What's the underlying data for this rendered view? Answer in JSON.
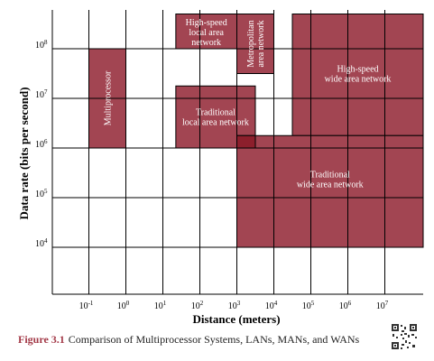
{
  "figure": {
    "x_axis_title": "Distance (meters)",
    "y_axis_title": "Data rate (bits per second)",
    "x_ticks": [
      {
        "base": "10",
        "exp": "-1"
      },
      {
        "base": "10",
        "exp": "0"
      },
      {
        "base": "10",
        "exp": "1"
      },
      {
        "base": "10",
        "exp": "2"
      },
      {
        "base": "10",
        "exp": "3"
      },
      {
        "base": "10",
        "exp": "4"
      },
      {
        "base": "10",
        "exp": "5"
      },
      {
        "base": "10",
        "exp": "6"
      },
      {
        "base": "10",
        "exp": "7"
      }
    ],
    "y_ticks": [
      {
        "base": "10",
        "exp": "8"
      },
      {
        "base": "10",
        "exp": "7"
      },
      {
        "base": "10",
        "exp": "6"
      },
      {
        "base": "10",
        "exp": "5"
      },
      {
        "base": "10",
        "exp": "4"
      }
    ],
    "regions": [
      {
        "id": "multiprocessor",
        "label_lines": [
          "Multiprocessor"
        ],
        "vertical": true,
        "x_range_log10": [
          -1,
          0
        ],
        "y_range_log10": [
          6,
          8
        ]
      },
      {
        "id": "hs-lan",
        "label_lines": [
          "High-speed",
          "local area",
          "network"
        ],
        "vertical": false,
        "x_range_log10": [
          1.35,
          3
        ],
        "y_range_log10": [
          8,
          8.7
        ]
      },
      {
        "id": "man",
        "label_lines": [
          "Metropolitan",
          "area network"
        ],
        "vertical": true,
        "x_range_log10": [
          3,
          4
        ],
        "y_range_log10": [
          7.5,
          8.7
        ]
      },
      {
        "id": "trad-lan",
        "label_lines": [
          "Traditional",
          "local area network"
        ],
        "vertical": false,
        "x_range_log10": [
          1.35,
          3.5
        ],
        "y_range_log10": [
          6,
          7.25
        ]
      },
      {
        "id": "hs-wan",
        "label_lines": [
          "High-speed",
          "wide area network"
        ],
        "vertical": false,
        "x_range_log10": [
          4.5,
          8.5
        ],
        "y_range_log10": [
          6.25,
          8.7
        ]
      },
      {
        "id": "trad-wan",
        "label_lines": [
          "Traditional",
          "wide area network"
        ],
        "vertical": false,
        "x_range_log10": [
          3,
          8.5
        ],
        "y_range_log10": [
          4,
          6.25
        ]
      }
    ],
    "colors": {
      "region_fill": "#a24552",
      "overlap_fill": "#8c1f2c",
      "grid": "#000000",
      "caption_accent": "#a33a48"
    }
  },
  "caption": {
    "number": "Figure 3.1",
    "text": "Comparison of Multiprocessor Systems, LANs, MANs, and WANs"
  }
}
